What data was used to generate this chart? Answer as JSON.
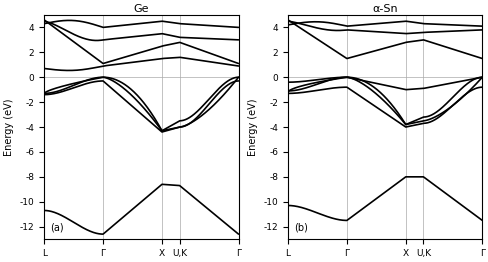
{
  "title_left": "Ge",
  "title_right": "α-Sn",
  "ylabel": "Energy (eV)",
  "kpoints": [
    "L",
    "Γ",
    "X",
    "U,K",
    "Γ"
  ],
  "kpoint_positions": [
    0.0,
    1.0,
    2.0,
    2.3,
    3.3
  ],
  "ylim": [
    -13,
    5
  ],
  "yticks": [
    -12,
    -10,
    -8,
    -6,
    -4,
    -2,
    0,
    2,
    4
  ],
  "label_a": "(a)",
  "label_b": "(b)",
  "figsize": [
    4.89,
    2.62
  ],
  "dpi": 100,
  "lw": 1.2,
  "color": "#000000",
  "bg": "#ffffff",
  "gridcolor": "#aaaaaa",
  "gridlw": 0.5
}
